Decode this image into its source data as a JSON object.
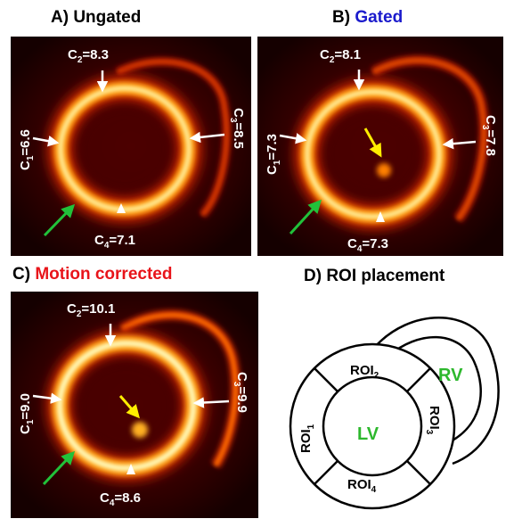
{
  "panels": {
    "a": {
      "title_prefix": "A) ",
      "title_main": "Ungated",
      "title_color": "#000000",
      "labels": {
        "c1": "C",
        "c1_sub": "1",
        "c1_val": "=6.6",
        "c2": "C",
        "c2_sub": "2",
        "c2_val": "=8.3",
        "c3": "C",
        "c3_sub": "3",
        "c3_val": "=8.5",
        "c4": "C",
        "c4_sub": "4",
        "c4_val": "=7.1"
      }
    },
    "b": {
      "title_prefix": "B) ",
      "title_main": "Gated",
      "title_color": "#1a1acc",
      "labels": {
        "c1": "C",
        "c1_sub": "1",
        "c1_val": "=7.3",
        "c2": "C",
        "c2_sub": "2",
        "c2_val": "=8.1",
        "c3": "C",
        "c3_sub": "3",
        "c3_val": "=7.8",
        "c4": "C",
        "c4_sub": "4",
        "c4_val": "=7.3"
      }
    },
    "c": {
      "title_prefix": "C) ",
      "title_main": "Motion corrected",
      "title_color": "#e8141a",
      "labels": {
        "c1": "C",
        "c1_sub": "1",
        "c1_val": "=9.0",
        "c2": "C",
        "c2_sub": "2",
        "c2_val": "=10.1",
        "c3": "C",
        "c3_sub": "3",
        "c3_val": "=9.9",
        "c4": "C",
        "c4_sub": "4",
        "c4_val": "=8.6"
      }
    },
    "d": {
      "title_prefix": "D) ",
      "title_main": "ROI placement",
      "title_color": "#000000",
      "lv": "LV",
      "rv": "RV",
      "roi": "ROI",
      "roi1_sub": "1",
      "roi2_sub": "2",
      "roi3_sub": "3",
      "roi4_sub": "4",
      "ventricle_color": "#2db82d"
    }
  },
  "colors": {
    "arrow_white": "#ffffff",
    "arrow_green": "#21c23a",
    "arrow_yellow": "#ffee00"
  }
}
